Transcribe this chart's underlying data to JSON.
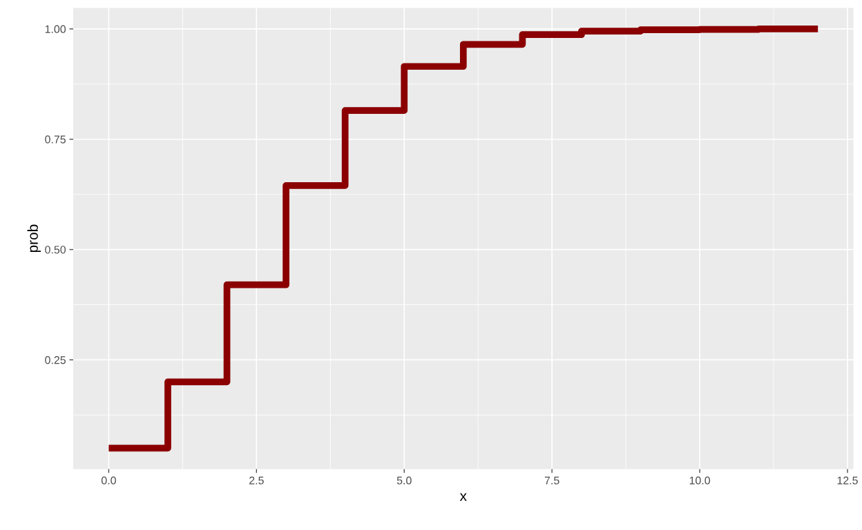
{
  "chart_data": {
    "type": "step",
    "xlabel": "x",
    "ylabel": "prob",
    "x": [
      0,
      1,
      2,
      3,
      4,
      5,
      6,
      7,
      8,
      9,
      10,
      11,
      12
    ],
    "series": [
      {
        "color": "#8b0000",
        "values": [
          0.05,
          0.2,
          0.42,
          0.645,
          0.815,
          0.915,
          0.965,
          0.987,
          0.995,
          0.998,
          0.999,
          1.0,
          1.0
        ]
      }
    ],
    "xlim": [
      -0.6,
      12.6
    ],
    "ylim": [
      0.0025,
      1.0475
    ],
    "xticks": [
      {
        "value": 0,
        "label": "0.0"
      },
      {
        "value": 2.5,
        "label": "2.5"
      },
      {
        "value": 5,
        "label": "5.0"
      },
      {
        "value": 7.5,
        "label": "7.5"
      },
      {
        "value": 10,
        "label": "10.0"
      },
      {
        "value": 12.5,
        "label": "12.5"
      }
    ],
    "yticks": [
      0.25,
      {
        "value": 0.5,
        "label": "0.50"
      },
      0.75,
      {
        "value": 1.0,
        "label": "1.00"
      }
    ],
    "grid": true,
    "legend": false
  }
}
